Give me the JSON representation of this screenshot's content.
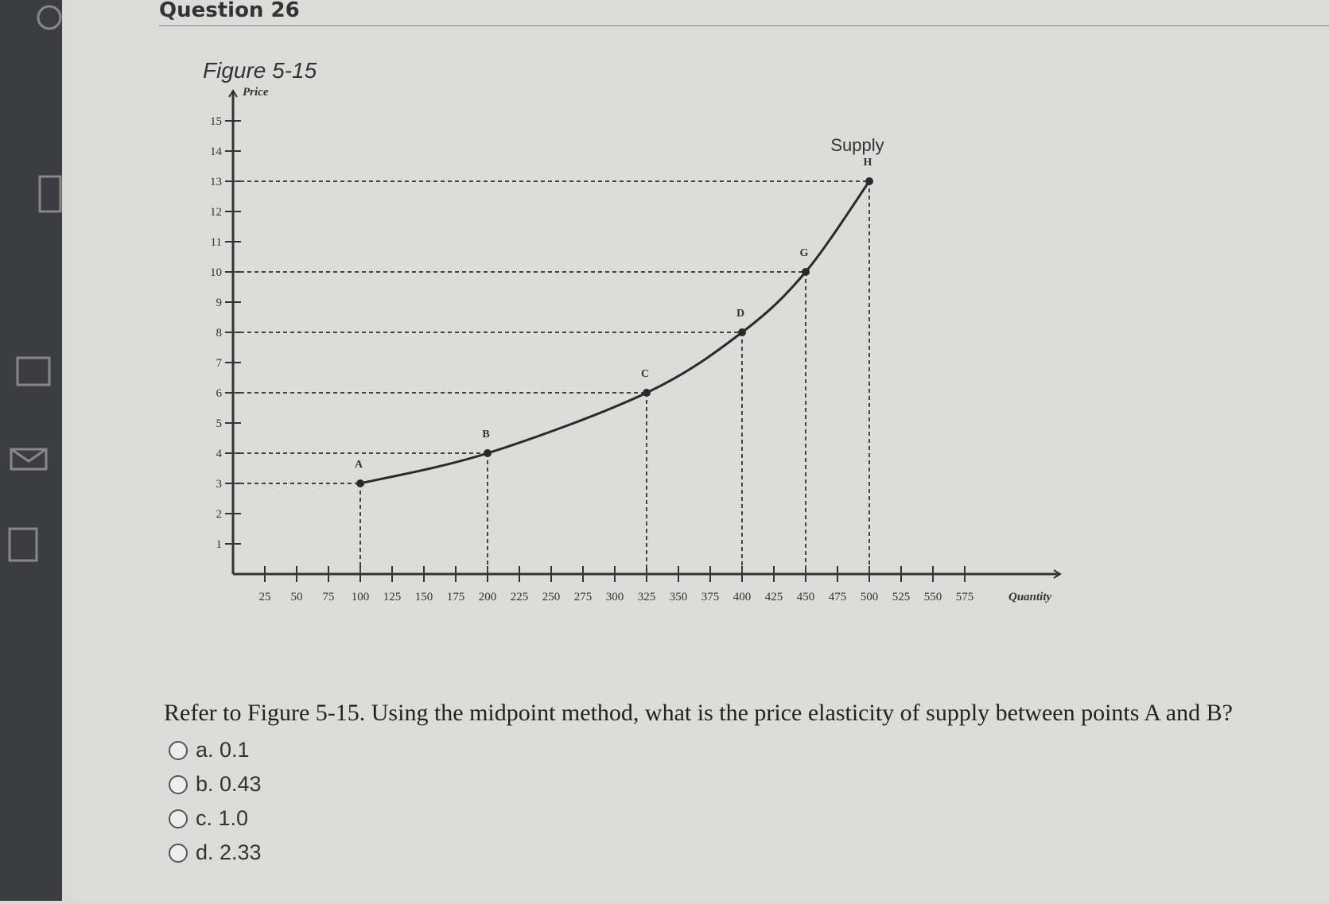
{
  "header": {
    "title": "Question 26"
  },
  "chart_data": {
    "type": "line",
    "title": "Figure 5-15",
    "y_label": "Price",
    "x_label": "Quantity",
    "x": [
      100,
      200,
      325,
      400,
      450,
      500
    ],
    "series": [
      {
        "name": "Supply",
        "color": "#2a2a2a",
        "values": [
          3,
          4,
          6,
          8,
          10,
          13
        ]
      }
    ],
    "point_labels": [
      "A",
      "B",
      "C",
      "D",
      "G",
      "H"
    ],
    "xlim": [
      0,
      650
    ],
    "ylim": [
      0,
      16
    ],
    "xticks": [
      25,
      50,
      75,
      100,
      125,
      150,
      175,
      200,
      225,
      250,
      275,
      300,
      325,
      350,
      375,
      400,
      425,
      450,
      475,
      500,
      525,
      550,
      575
    ],
    "yticks": [
      1,
      2,
      3,
      4,
      5,
      6,
      7,
      8,
      9,
      10,
      11,
      12,
      13,
      14,
      15
    ],
    "guide_lines": true
  },
  "question": {
    "text": "Refer to Figure 5-15. Using the midpoint method, what is the price elasticity of supply between points A and B?",
    "options": [
      "a. 0.1",
      "b. 0.43",
      "c. 1.0",
      "d. 2.33"
    ]
  }
}
